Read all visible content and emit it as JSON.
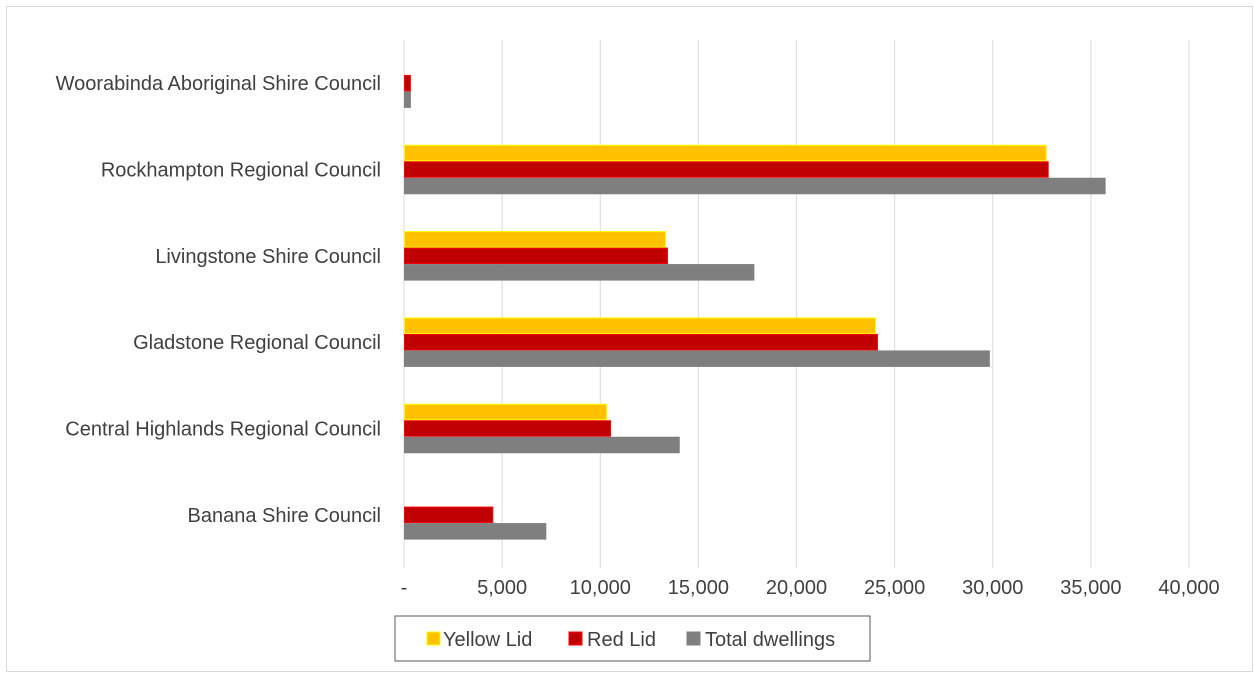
{
  "chart_data": {
    "type": "bar",
    "orientation": "horizontal",
    "categories": [
      "Banana Shire Council",
      "Central Highlands Regional Council",
      "Gladstone Regional Council",
      "Livingstone Shire Council",
      "Rockhampton Regional Council",
      "Woorabinda Aboriginal Shire Council"
    ],
    "series": [
      {
        "name": "Yellow Lid",
        "color": "#FFC000",
        "border": "#FFFF00",
        "values": [
          0,
          10300,
          24000,
          13300,
          32700,
          0
        ]
      },
      {
        "name": "Red Lid",
        "color": "#C00000",
        "border": "#FF0000",
        "values": [
          4500,
          10500,
          24100,
          13400,
          32800,
          300
        ]
      },
      {
        "name": "Total dwellings",
        "color": "#7F7F7F",
        "border": "#7F7F7F",
        "values": [
          7200,
          14000,
          29800,
          17800,
          35700,
          300
        ]
      }
    ],
    "x_ticks": [
      "-",
      "5,000",
      "10,000",
      "15,000",
      "20,000",
      "25,000",
      "30,000",
      "35,000",
      "40,000"
    ],
    "xlim": [
      0,
      40000
    ],
    "grid": "vertical",
    "legend_position": "bottom"
  }
}
